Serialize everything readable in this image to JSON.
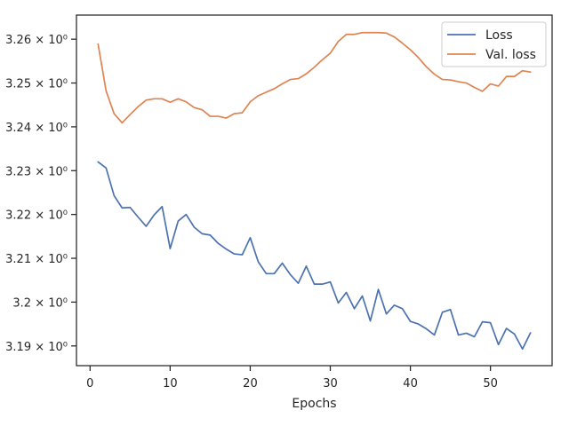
{
  "chart_data": {
    "type": "line",
    "title": "",
    "xlabel": "Epochs",
    "ylabel": "",
    "xlim": [
      -1.7,
      57.7
    ],
    "ylim": [
      3.1855,
      3.2655
    ],
    "grid": false,
    "legend_position": "top-right",
    "x_ticks": [
      {
        "value": 0,
        "label": "0"
      },
      {
        "value": 10,
        "label": "10"
      },
      {
        "value": 20,
        "label": "20"
      },
      {
        "value": 30,
        "label": "30"
      },
      {
        "value": 40,
        "label": "40"
      },
      {
        "value": 50,
        "label": "50"
      }
    ],
    "y_ticks": [
      {
        "value": 3.19,
        "label": "3.19 × 10⁰"
      },
      {
        "value": 3.2,
        "label": "3.2 × 10⁰"
      },
      {
        "value": 3.21,
        "label": "3.21 × 10⁰"
      },
      {
        "value": 3.22,
        "label": "3.22 × 10⁰"
      },
      {
        "value": 3.23,
        "label": "3.23 × 10⁰"
      },
      {
        "value": 3.24,
        "label": "3.24 × 10⁰"
      },
      {
        "value": 3.25,
        "label": "3.25 × 10⁰"
      },
      {
        "value": 3.26,
        "label": "3.26 × 10⁰"
      }
    ],
    "x": [
      1,
      2,
      3,
      4,
      5,
      6,
      7,
      8,
      9,
      10,
      11,
      12,
      13,
      14,
      15,
      16,
      17,
      18,
      19,
      20,
      21,
      22,
      23,
      24,
      25,
      26,
      27,
      28,
      29,
      30,
      31,
      32,
      33,
      34,
      35,
      36,
      37,
      38,
      39,
      40,
      41,
      42,
      43,
      44,
      45,
      46,
      47,
      48,
      49,
      50,
      51,
      52,
      53,
      54,
      55
    ],
    "series": [
      {
        "name": "Loss",
        "color": "#4c72b0",
        "values": [
          3.232,
          3.2306,
          3.2243,
          3.2215,
          3.2216,
          3.2194,
          3.2173,
          3.2199,
          3.2218,
          3.2122,
          3.2185,
          3.22,
          3.2171,
          3.2156,
          3.2153,
          3.2134,
          3.2121,
          3.211,
          3.2108,
          3.2147,
          3.2092,
          3.2065,
          3.2065,
          3.2089,
          3.2063,
          3.2043,
          3.2082,
          3.2041,
          3.2041,
          3.2046,
          3.1998,
          3.2022,
          3.1985,
          3.2014,
          3.1957,
          3.2029,
          3.1973,
          3.1993,
          3.1985,
          3.1956,
          3.195,
          3.1939,
          3.1925,
          3.1977,
          3.1983,
          3.1925,
          3.1929,
          3.1921,
          3.1955,
          3.1953,
          3.1903,
          3.194,
          3.1927,
          3.1893,
          3.193
        ]
      },
      {
        "name": "Val. loss",
        "color": "#dd8452",
        "values": [
          3.2589,
          3.2482,
          3.243,
          3.2409,
          3.2428,
          3.2446,
          3.2461,
          3.2464,
          3.2464,
          3.2456,
          3.2464,
          3.2457,
          3.2444,
          3.2439,
          3.2424,
          3.2424,
          3.242,
          3.243,
          3.2432,
          3.2457,
          3.2471,
          3.2479,
          3.2487,
          3.2498,
          3.2508,
          3.251,
          3.2521,
          3.2536,
          3.2553,
          3.2568,
          3.2595,
          3.2611,
          3.2611,
          3.2615,
          3.2615,
          3.2615,
          3.2614,
          3.2605,
          3.2591,
          3.2576,
          3.2558,
          3.2537,
          3.252,
          3.2508,
          3.2507,
          3.2503,
          3.25,
          3.249,
          3.2481,
          3.2498,
          3.2493,
          3.2515,
          3.2515,
          3.2528,
          3.2525
        ]
      }
    ]
  }
}
